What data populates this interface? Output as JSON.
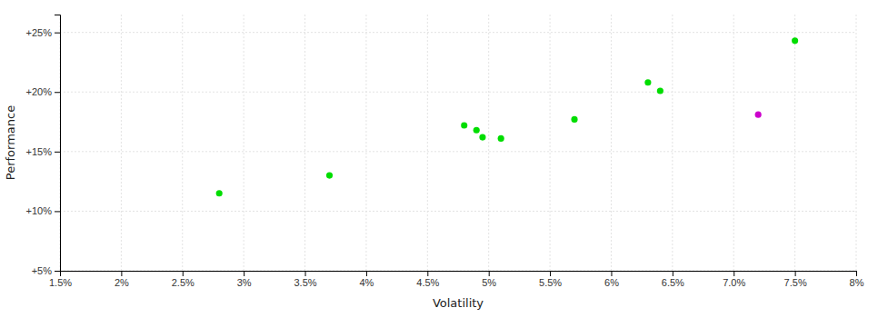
{
  "chart_data": {
    "type": "scatter",
    "xlabel": "Volatility",
    "ylabel": "Performance",
    "xlim": [
      0.015,
      0.08
    ],
    "ylim": [
      0.05,
      0.265
    ],
    "xticks": [
      {
        "value": 0.015,
        "label": "1.5%"
      },
      {
        "value": 0.02,
        "label": "2%"
      },
      {
        "value": 0.025,
        "label": "2.5%"
      },
      {
        "value": 0.03,
        "label": "3%"
      },
      {
        "value": 0.035,
        "label": "3.5%"
      },
      {
        "value": 0.04,
        "label": "4%"
      },
      {
        "value": 0.045,
        "label": "4.5%"
      },
      {
        "value": 0.05,
        "label": "5%"
      },
      {
        "value": 0.055,
        "label": "5.5%"
      },
      {
        "value": 0.06,
        "label": "6%"
      },
      {
        "value": 0.065,
        "label": "6.5%"
      },
      {
        "value": 0.07,
        "label": "7.0%"
      },
      {
        "value": 0.075,
        "label": "7.5%"
      },
      {
        "value": 0.08,
        "label": "8%"
      }
    ],
    "yticks": [
      {
        "value": 0.05,
        "label": "+5%"
      },
      {
        "value": 0.1,
        "label": "+10%"
      },
      {
        "value": 0.15,
        "label": "+15%"
      },
      {
        "value": 0.2,
        "label": "+20%"
      },
      {
        "value": 0.25,
        "label": "+25%"
      }
    ],
    "grid": true,
    "series": [
      {
        "color": "#00dd00",
        "marker": "circle",
        "x": [
          0.028,
          0.037,
          0.048,
          0.049,
          0.0495,
          0.051,
          0.057,
          0.063,
          0.064,
          0.075
        ],
        "values": [
          0.115,
          0.13,
          0.172,
          0.168,
          0.162,
          0.161,
          0.177,
          0.208,
          0.201,
          0.243
        ]
      },
      {
        "color": "#cc00cc",
        "marker": "circle",
        "x": [
          0.072
        ],
        "values": [
          0.181
        ]
      }
    ]
  }
}
